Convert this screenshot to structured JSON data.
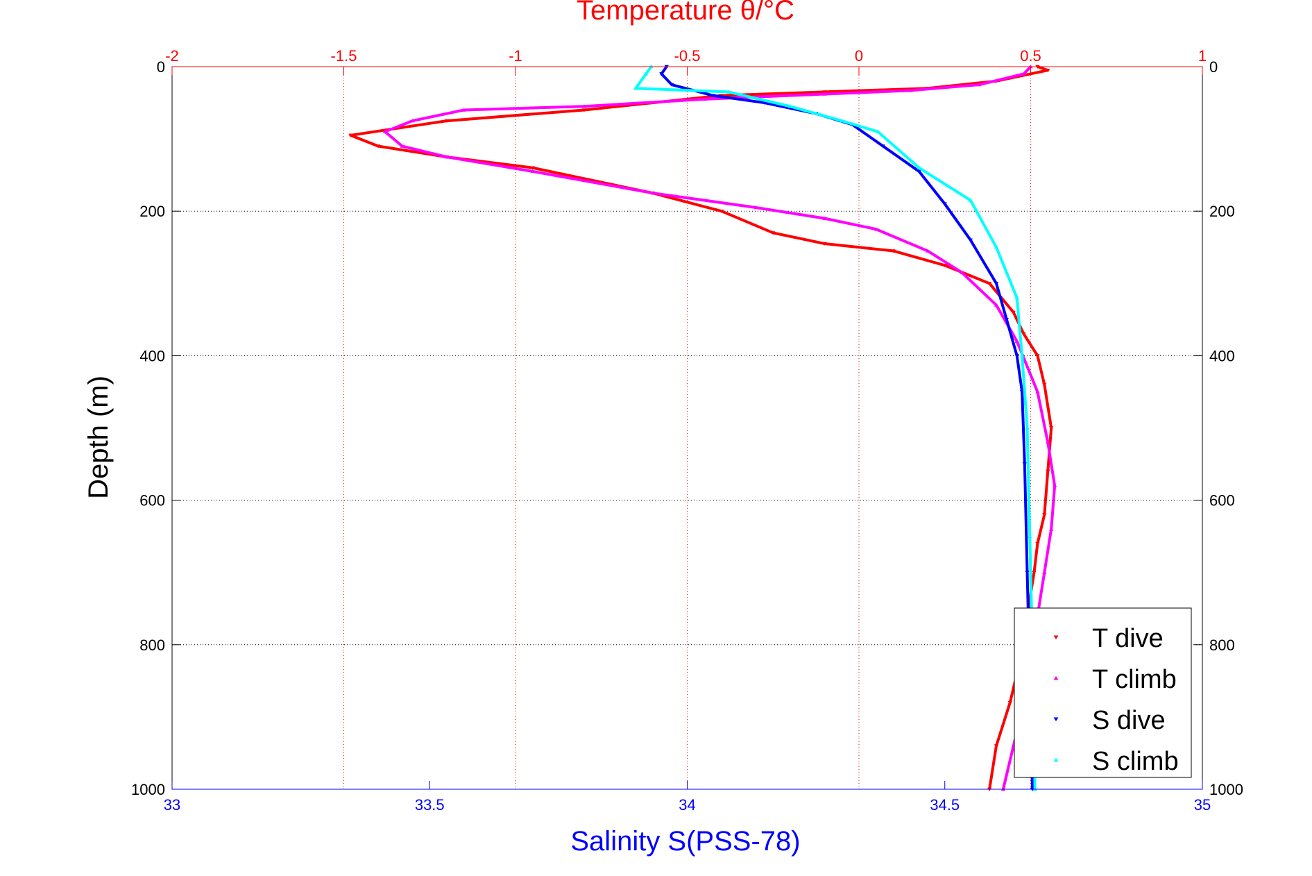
{
  "chart_data": {
    "type": "scatter",
    "title": "Temperature θ/°C",
    "xlabel": "Salinity S(PSS-78)",
    "ylabel": "Depth (m)",
    "x_top_ticks": [
      "-2",
      "-1.5",
      "-1",
      "-0.5",
      "0",
      "0.5",
      "1"
    ],
    "x_bottom_ticks": [
      "33",
      "33.5",
      "34",
      "34.5",
      "35"
    ],
    "y_ticks": [
      "0",
      "200",
      "400",
      "600",
      "800",
      "1000"
    ],
    "temperature_range": [
      -2,
      1
    ],
    "salinity_range": [
      33,
      35
    ],
    "depth_range": [
      0,
      1000
    ],
    "y_reversed": true,
    "grid": "dotted, y at depth ticks and x at temperature ticks",
    "legend_position": "bottom-right",
    "colors": {
      "title": "#ff0000",
      "salinity_axis": "#0000ff",
      "t_dive": "#ff0000",
      "t_climb": "#ff00ff",
      "s_dive": "#0000ff",
      "s_climb": "#00ffff",
      "grid_temperature": "#ff0000",
      "grid_depth": "#000000"
    },
    "series": [
      {
        "name": "T dive",
        "axis": "temperature",
        "marker": "down-triangle",
        "x": [
          0.52,
          0.55,
          0.4,
          0.2,
          -0.1,
          -0.4,
          -0.8,
          -1.2,
          -1.48,
          -1.4,
          -1.2,
          -0.95,
          -0.6,
          -0.4,
          -0.25,
          -0.1,
          0.1,
          0.25,
          0.38,
          0.45,
          0.48,
          0.52,
          0.54,
          0.56,
          0.55,
          0.54,
          0.52,
          0.51,
          0.49,
          0.47,
          0.44,
          0.4,
          0.38
        ],
        "depth": [
          0,
          5,
          20,
          30,
          35,
          40,
          60,
          75,
          95,
          110,
          125,
          140,
          175,
          200,
          230,
          245,
          255,
          275,
          300,
          340,
          370,
          400,
          440,
          500,
          560,
          620,
          660,
          700,
          760,
          820,
          880,
          940,
          1000
        ]
      },
      {
        "name": "T climb",
        "axis": "temperature",
        "marker": "up-triangle",
        "x": [
          0.5,
          0.48,
          0.35,
          0.15,
          -0.1,
          -0.45,
          -0.8,
          -1.15,
          -1.3,
          -1.38,
          -1.33,
          -1.2,
          -0.95,
          -0.6,
          -0.3,
          -0.1,
          0.05,
          0.2,
          0.3,
          0.4,
          0.46,
          0.52,
          0.55,
          0.57,
          0.56,
          0.54,
          0.52,
          0.5,
          0.48,
          0.45,
          0.42
        ],
        "depth": [
          0,
          10,
          25,
          33,
          38,
          45,
          55,
          60,
          75,
          90,
          110,
          125,
          145,
          175,
          195,
          210,
          225,
          255,
          285,
          330,
          380,
          450,
          520,
          580,
          640,
          700,
          760,
          820,
          880,
          940,
          1000
        ]
      },
      {
        "name": "S dive",
        "axis": "salinity",
        "marker": "down-triangle",
        "x": [
          33.96,
          33.95,
          33.97,
          34.05,
          34.15,
          34.25,
          34.32,
          34.38,
          34.45,
          34.5,
          34.55,
          34.6,
          34.62,
          34.64,
          34.65,
          34.655,
          34.66,
          34.665,
          34.67
        ],
        "depth": [
          0,
          10,
          25,
          40,
          50,
          65,
          80,
          110,
          145,
          190,
          240,
          300,
          350,
          400,
          450,
          550,
          700,
          850,
          1000
        ]
      },
      {
        "name": "S climb",
        "axis": "salinity",
        "marker": "up-triangle",
        "x": [
          33.93,
          33.92,
          33.9,
          34.08,
          34.2,
          34.3,
          34.37,
          34.45,
          34.55,
          34.6,
          34.64,
          34.65,
          34.66,
          34.665,
          34.67,
          34.675
        ],
        "depth": [
          0,
          10,
          30,
          35,
          55,
          75,
          90,
          140,
          185,
          250,
          320,
          400,
          500,
          650,
          800,
          1000
        ]
      }
    ]
  }
}
